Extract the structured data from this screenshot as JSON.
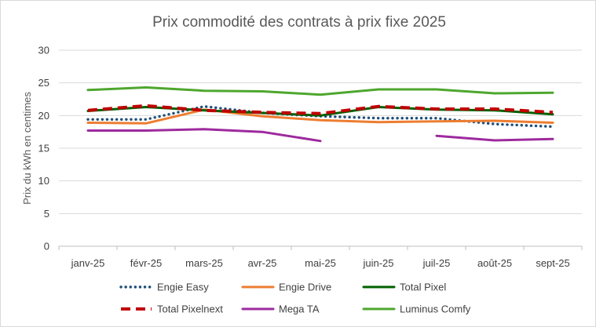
{
  "chart_data": {
    "type": "line",
    "title": "Prix commodité des contrats à prix fixe 2025",
    "ylabel": "Prix du kWh en centimes",
    "xlabel": "",
    "categories": [
      "janv-25",
      "févr-25",
      "mars-25",
      "avr-25",
      "mai-25",
      "juin-25",
      "juil-25",
      "août-25",
      "sept-25"
    ],
    "ylim": [
      0,
      30
    ],
    "yticks": [
      0,
      5,
      10,
      15,
      20,
      25,
      30
    ],
    "grid": true,
    "legend_position": "bottom",
    "series": [
      {
        "name": "Engie Easy",
        "color": "#1f4e79",
        "style": "dotted",
        "values": [
          19.4,
          19.4,
          21.4,
          20.4,
          19.9,
          19.6,
          19.6,
          18.7,
          18.3
        ]
      },
      {
        "name": "Engie Drive",
        "color": "#ed7d31",
        "style": "solid",
        "values": [
          18.9,
          18.8,
          20.9,
          19.9,
          19.3,
          19.0,
          19.1,
          19.2,
          18.9
        ]
      },
      {
        "name": "Total Pixel",
        "color": "#006100",
        "style": "solid",
        "values": [
          20.7,
          21.3,
          20.8,
          20.4,
          20.0,
          21.3,
          20.9,
          20.8,
          20.2
        ]
      },
      {
        "name": "Total Pixelnext",
        "color": "#c00000",
        "style": "dashed",
        "values": [
          20.8,
          21.5,
          20.8,
          20.5,
          20.3,
          21.4,
          21.0,
          21.0,
          20.5
        ]
      },
      {
        "name": "Mega TA",
        "color": "#9e2a9e",
        "style": "solid",
        "values": [
          17.7,
          17.7,
          17.9,
          17.5,
          16.1,
          null,
          16.9,
          16.2,
          16.4
        ]
      },
      {
        "name": "Luminus Comfy",
        "color": "#4ea72e",
        "style": "solid",
        "values": [
          23.9,
          24.3,
          23.8,
          23.7,
          23.2,
          24.0,
          24.0,
          23.4,
          23.5
        ]
      }
    ]
  }
}
